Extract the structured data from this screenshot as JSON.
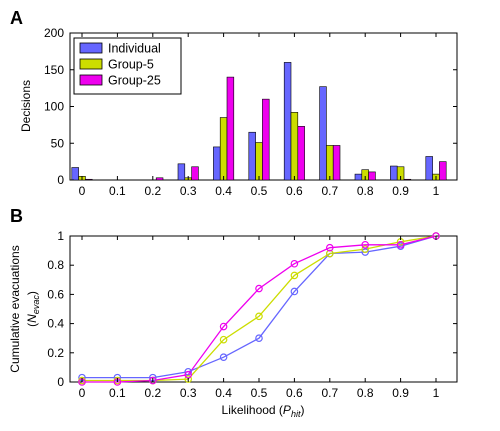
{
  "panels": [
    "A",
    "B"
  ],
  "chart_data": [
    {
      "type": "bar",
      "categories": [
        "0",
        "0.1",
        "0.2",
        "0.3",
        "0.4",
        "0.5",
        "0.6",
        "0.7",
        "0.8",
        "0.9",
        "1"
      ],
      "series": [
        {
          "name": "Individual",
          "color": "#6666ff",
          "values": [
            17,
            0,
            0,
            22,
            45,
            65,
            160,
            127,
            8,
            19,
            32
          ]
        },
        {
          "name": "Group-5",
          "color": "#ccdd00",
          "values": [
            5,
            0,
            0,
            3,
            85,
            51,
            92,
            47,
            14,
            18,
            8
          ]
        },
        {
          "name": "Group-25",
          "color": "#ee00ee",
          "values": [
            1,
            0,
            3,
            18,
            140,
            110,
            73,
            47,
            11,
            1,
            25
          ]
        }
      ],
      "xlabel": "",
      "ylabel": "Decisions",
      "ylim": [
        0,
        200
      ],
      "yticks": [
        "0",
        "50",
        "100",
        "150",
        "200"
      ],
      "legend": "top-left",
      "grid": false
    },
    {
      "type": "line",
      "x": [
        0,
        0.1,
        0.2,
        0.3,
        0.4,
        0.5,
        0.6,
        0.7,
        0.8,
        0.9,
        1
      ],
      "xticks": [
        "0",
        "0.1",
        "0.2",
        "0.3",
        "0.4",
        "0.5",
        "0.6",
        "0.7",
        "0.8",
        "0.9",
        "1"
      ],
      "series": [
        {
          "name": "Individual",
          "color": "#6666ff",
          "values": [
            0.03,
            0.03,
            0.03,
            0.07,
            0.17,
            0.3,
            0.62,
            0.88,
            0.89,
            0.93,
            1.0
          ]
        },
        {
          "name": "Group-5",
          "color": "#ccdd00",
          "values": [
            0.01,
            0.01,
            0.01,
            0.02,
            0.29,
            0.45,
            0.73,
            0.88,
            0.91,
            0.96,
            1.0
          ]
        },
        {
          "name": "Group-25",
          "color": "#ee00ee",
          "values": [
            0.0,
            0.0,
            0.01,
            0.05,
            0.38,
            0.64,
            0.81,
            0.92,
            0.94,
            0.94,
            1.0
          ]
        }
      ],
      "xlabel_text": "Likelihood (",
      "xlabel_var": "P",
      "xlabel_sub": "hit",
      "xlabel_close": ")",
      "ylabel_line1": "Cumulative evacuations",
      "ylabel_line2_open": "(",
      "ylabel_line2_var": "N",
      "ylabel_line2_sub": "evac",
      "ylabel_line2_close": ")",
      "ylim": [
        0,
        1
      ],
      "yticks": [
        "0",
        "0.2",
        "0.4",
        "0.6",
        "0.8",
        "1"
      ],
      "grid": false
    }
  ]
}
